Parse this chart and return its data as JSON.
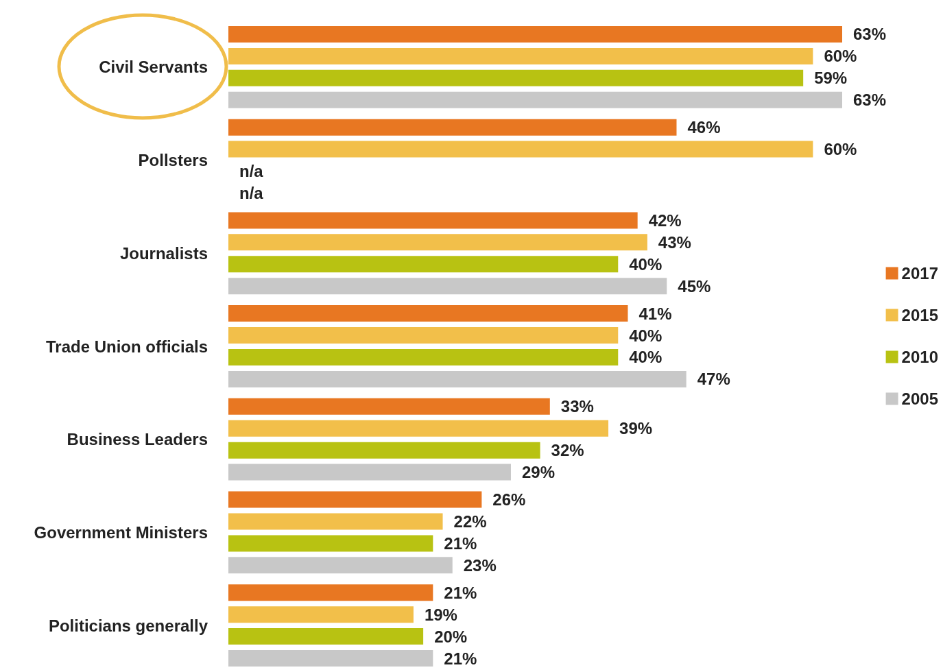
{
  "chart_data": {
    "type": "bar",
    "orientation": "horizontal",
    "categories": [
      "Civil Servants",
      "Pollsters",
      "Journalists",
      "Trade Union officials",
      "Business Leaders",
      "Government Ministers",
      "Politicians generally"
    ],
    "series": [
      {
        "name": "2017",
        "color": "#e87722",
        "values": [
          63,
          46,
          42,
          41,
          33,
          26,
          21
        ],
        "value_labels": [
          "63%",
          "46%",
          "42%",
          "41%",
          "33%",
          "26%",
          "21%"
        ]
      },
      {
        "name": "2015",
        "color": "#f2bf4a",
        "values": [
          60,
          60,
          43,
          40,
          39,
          22,
          19
        ],
        "value_labels": [
          "60%",
          "60%",
          "43%",
          "40%",
          "39%",
          "22%",
          "19%"
        ]
      },
      {
        "name": "2010",
        "color": "#b8c212",
        "values": [
          59,
          null,
          40,
          40,
          32,
          21,
          20
        ],
        "value_labels": [
          "59%",
          "n/a",
          "40%",
          "40%",
          "32%",
          "21%",
          "20%"
        ]
      },
      {
        "name": "2005",
        "color": "#c8c8c8",
        "values": [
          63,
          null,
          45,
          47,
          29,
          23,
          21
        ],
        "value_labels": [
          "63%",
          "n/a",
          "45%",
          "47%",
          "29%",
          "23%",
          "21%"
        ]
      }
    ],
    "legend": "right",
    "grid": false
  }
}
